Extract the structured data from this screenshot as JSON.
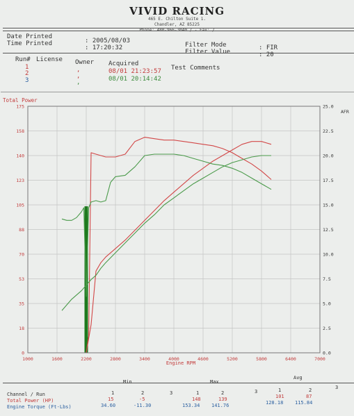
{
  "header": {
    "company": "VIVID RACING",
    "address1": "465 E. Chilton Suite 1.",
    "address2": "Chandler, AZ  85225",
    "phone": "Phone: 480-966-3040 /  - Fax: /"
  },
  "info": {
    "date_label": "Date Printed",
    "time_label": "Time Printed",
    "date_value": ": 2005/08/03",
    "time_value": ": 17:20:32",
    "filter_mode_label": "Filter Mode",
    "filter_value_label": "Filter Value",
    "filter_mode_value": ": FIR",
    "filter_value_value": ": 20"
  },
  "runs": {
    "headers": {
      "run": "Run#",
      "license": "License",
      "owner": "Owner",
      "acquired": "Acquired",
      "comments": "Test Comments"
    },
    "rows": [
      {
        "run": "1",
        "owner": ",",
        "acquired": "08/01 21:23:57",
        "color": "#c23a3a"
      },
      {
        "run": "2",
        "owner": ",",
        "acquired": "",
        "color": "#c23a3a"
      },
      {
        "run": "3",
        "owner": ",",
        "acquired": "08/01 20:14:42",
        "color": "#3c8a3c"
      }
    ]
  },
  "chart_data": {
    "type": "line",
    "ylabel_left": "Total Power",
    "ylabel_right": "AFR",
    "xlabel": "Engine RPM",
    "xlim": [
      1000,
      7000
    ],
    "ylim": [
      0,
      175
    ],
    "ylim_right": [
      0,
      25
    ],
    "x_ticks": [
      "1000",
      "1600",
      "2200",
      "2800",
      "3400",
      "4000",
      "4600",
      "5200",
      "5800",
      "6400",
      "7000"
    ],
    "y_ticks": [
      "0",
      "18",
      "35",
      "53",
      "70",
      "88",
      "105",
      "123",
      "140",
      "158",
      "175"
    ],
    "y_right_ticks": [
      "0.0",
      "2.5",
      "5.0",
      "7.5",
      "10.0",
      "12.5",
      "15.0",
      "17.5",
      "20.0",
      "22.5",
      "25.0"
    ],
    "grid": true,
    "series": [
      {
        "color": "#d24747",
        "axis": "left",
        "x": [
          2200,
          2300,
          2400,
          2500,
          2600,
          2800,
          3000,
          3200,
          3400,
          3600,
          3800,
          4000,
          4200,
          4400,
          4600,
          4800,
          5000,
          5200,
          5400,
          5600,
          5800,
          6000
        ],
        "y": [
          0,
          20,
          58,
          64,
          68,
          74,
          80,
          87,
          94,
          101,
          108,
          114,
          120,
          126,
          131,
          136,
          140,
          144,
          148,
          150,
          150,
          148
        ]
      },
      {
        "color": "#d24747",
        "axis": "left",
        "x": [
          2200,
          2250,
          2300,
          2400,
          2500,
          2600,
          2800,
          3000,
          3200,
          3400,
          3600,
          3800,
          4000,
          4200,
          4400,
          4600,
          4800,
          5000,
          5200,
          5400,
          5600,
          5800,
          6000
        ],
        "y": [
          0,
          12,
          142,
          141,
          140,
          139,
          139,
          141,
          150,
          153,
          152,
          151,
          151,
          150,
          149,
          148,
          147,
          145,
          142,
          138,
          134,
          129,
          123
        ]
      },
      {
        "color": "#4a9a4a",
        "axis": "left",
        "x": [
          1700,
          1800,
          1900,
          2000,
          2100,
          2150,
          2250,
          2300,
          2400,
          2500,
          2600,
          2800,
          3000,
          3200,
          3400,
          3600,
          3800,
          4000,
          4200,
          4400,
          4600,
          4800,
          5000,
          5200,
          5400,
          5600,
          5800,
          6000
        ],
        "y": [
          30,
          34,
          38,
          41,
          44,
          46,
          50,
          52,
          55,
          60,
          64,
          71,
          78,
          85,
          92,
          98,
          105,
          110,
          115,
          120,
          124,
          128,
          132,
          135,
          137,
          139,
          140,
          140
        ]
      },
      {
        "color": "#4a9a4a",
        "axis": "left",
        "x": [
          1700,
          1800,
          1900,
          2000,
          2100,
          2150,
          2200,
          2250,
          2300,
          2400,
          2500,
          2600,
          2700,
          2800,
          3000,
          3200,
          3400,
          3600,
          3800,
          4000,
          4200,
          4400,
          4600,
          4800,
          5000,
          5200,
          5400,
          5600,
          5800,
          6000
        ],
        "y": [
          95,
          94,
          94,
          96,
          100,
          103,
          40,
          103,
          107,
          108,
          107,
          108,
          121,
          125,
          126,
          132,
          140,
          141,
          141,
          141,
          140,
          138,
          136,
          134,
          133,
          131,
          128,
          124,
          120,
          116
        ]
      }
    ],
    "bar": {
      "x": 2200,
      "color": "#1e7a1e"
    }
  },
  "summary": {
    "min": "Min",
    "max": "Max",
    "avg": "Avg",
    "channel_run": "Channel / Run",
    "total_power": "Total Power (HP)",
    "engine_torque": "Engine Torque (Ft-Lbs)",
    "min_runs": [
      "1",
      "2",
      "3"
    ],
    "max_runs": [
      "1",
      "2",
      "3"
    ],
    "avg_runs": [
      "1",
      "2",
      "3"
    ],
    "min_power": [
      "15",
      "-5"
    ],
    "max_power": [
      "148",
      "139"
    ],
    "avg_power": [
      "101",
      "87"
    ],
    "min_torque": [
      "34.60",
      "-11.30"
    ],
    "max_torque": [
      "153.34",
      "141.76"
    ],
    "avg_torque": [
      "128.18",
      "115.84"
    ]
  }
}
